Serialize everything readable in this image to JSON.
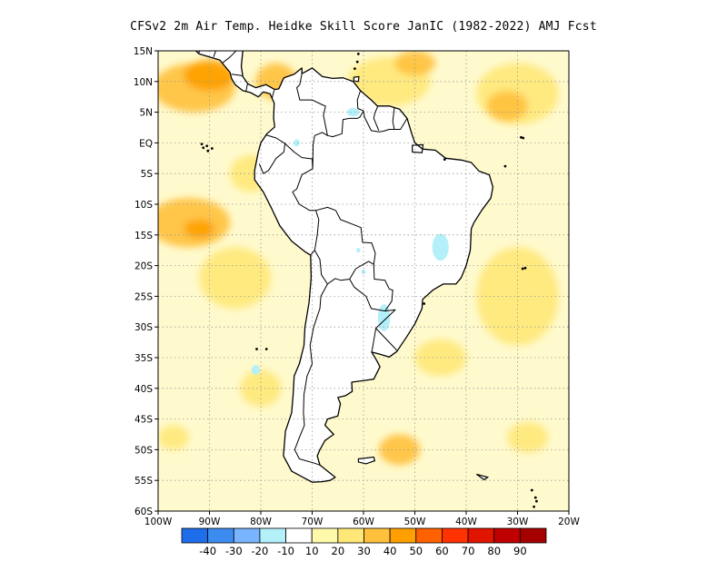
{
  "title": "CFSv2  2m Air Temp. Heidke Skill Score JanIC (1982-2022) AMJ Fcst",
  "map": {
    "lon_range": [
      -100,
      -20
    ],
    "lat_range": [
      -60,
      15
    ],
    "lat_ticks": [
      {
        "lat": 15,
        "label": "15N"
      },
      {
        "lat": 10,
        "label": "10N"
      },
      {
        "lat": 5,
        "label": "5N"
      },
      {
        "lat": 0,
        "label": "EQ"
      },
      {
        "lat": -5,
        "label": "5S"
      },
      {
        "lat": -10,
        "label": "10S"
      },
      {
        "lat": -15,
        "label": "15S"
      },
      {
        "lat": -20,
        "label": "20S"
      },
      {
        "lat": -25,
        "label": "25S"
      },
      {
        "lat": -30,
        "label": "30S"
      },
      {
        "lat": -35,
        "label": "35S"
      },
      {
        "lat": -40,
        "label": "40S"
      },
      {
        "lat": -45,
        "label": "45S"
      },
      {
        "lat": -50,
        "label": "50S"
      },
      {
        "lat": -55,
        "label": "55S"
      },
      {
        "lat": -60,
        "label": "60S"
      }
    ],
    "lon_ticks": [
      {
        "lon": -100,
        "label": "100W"
      },
      {
        "lon": -90,
        "label": "90W"
      },
      {
        "lon": -80,
        "label": "80W"
      },
      {
        "lon": -70,
        "label": "70W"
      },
      {
        "lon": -60,
        "label": "60W"
      },
      {
        "lon": -50,
        "label": "50W"
      },
      {
        "lon": -40,
        "label": "40W"
      },
      {
        "lon": -30,
        "label": "30W"
      },
      {
        "lon": -20,
        "label": "20W"
      }
    ],
    "gridlines": "dotted",
    "background_color": "#fffacd",
    "land_color": "#ffffff"
  },
  "colorbar": {
    "colors": [
      "#1e6eeb",
      "#3c8cf0",
      "#78b4ff",
      "#b4f0fa",
      "#ffffff",
      "#fffaaa",
      "#ffe878",
      "#ffc03c",
      "#ffa000",
      "#ff6000",
      "#ff3200",
      "#e11400",
      "#c00000",
      "#a50000"
    ],
    "labels": [
      "-40",
      "-30",
      "-20",
      "-10",
      "10",
      "20",
      "30",
      "40",
      "50",
      "60",
      "70",
      "80",
      "90"
    ]
  },
  "shading": [
    {
      "lon": -93,
      "lat": 9,
      "rx": 8,
      "ry": 4,
      "color": "#ffc03c"
    },
    {
      "lon": -90,
      "lat": 11,
      "rx": 5,
      "ry": 2.5,
      "color": "#ffa000"
    },
    {
      "lon": -77,
      "lat": 10,
      "rx": 4,
      "ry": 3,
      "color": "#ffc03c"
    },
    {
      "lon": -55,
      "lat": 10,
      "rx": 8,
      "ry": 4,
      "color": "#ffe878"
    },
    {
      "lon": -50,
      "lat": 13,
      "rx": 4,
      "ry": 2,
      "color": "#ffc03c"
    },
    {
      "lon": -30,
      "lat": 8,
      "rx": 8,
      "ry": 5,
      "color": "#ffe878"
    },
    {
      "lon": -32,
      "lat": 6,
      "rx": 4,
      "ry": 2.5,
      "color": "#ffc03c"
    },
    {
      "lon": -94,
      "lat": -13,
      "rx": 8,
      "ry": 4,
      "color": "#ffc03c"
    },
    {
      "lon": -92,
      "lat": -14,
      "rx": 3,
      "ry": 1.5,
      "color": "#ffa000"
    },
    {
      "lon": -85,
      "lat": -22,
      "rx": 7,
      "ry": 5,
      "color": "#ffe878"
    },
    {
      "lon": -82,
      "lat": -5,
      "rx": 4,
      "ry": 3,
      "color": "#ffe878"
    },
    {
      "lon": -70,
      "lat": -10,
      "rx": 3,
      "ry": 4,
      "color": "#ffe878"
    },
    {
      "lon": -40,
      "lat": -8,
      "rx": 4,
      "ry": 3,
      "color": "#ffe878"
    },
    {
      "lon": -58,
      "lat": -15,
      "rx": 4,
      "ry": 3,
      "color": "#ffe878"
    },
    {
      "lon": -30,
      "lat": -25,
      "rx": 8,
      "ry": 8,
      "color": "#ffe878"
    },
    {
      "lon": -45,
      "lat": -35,
      "rx": 5,
      "ry": 3,
      "color": "#ffe878"
    },
    {
      "lon": -53,
      "lat": -50,
      "rx": 4,
      "ry": 2.5,
      "color": "#ffc03c"
    },
    {
      "lon": -97,
      "lat": -48,
      "rx": 3,
      "ry": 2,
      "color": "#ffe878"
    },
    {
      "lon": -28,
      "lat": -48,
      "rx": 4,
      "ry": 2.5,
      "color": "#ffe878"
    },
    {
      "lon": -80,
      "lat": -40,
      "rx": 4,
      "ry": 3,
      "color": "#ffe878"
    }
  ],
  "negative_patches": [
    {
      "lon": -62,
      "lat": 5,
      "rx": 1.2,
      "ry": 0.7
    },
    {
      "lon": -73,
      "lat": 0,
      "rx": 0.6,
      "ry": 0.6
    },
    {
      "lon": -45,
      "lat": -17,
      "rx": 1.6,
      "ry": 2.2
    },
    {
      "lon": -56,
      "lat": -28.5,
      "rx": 1.2,
      "ry": 2.2
    },
    {
      "lon": -81,
      "lat": -37,
      "rx": 0.8,
      "ry": 0.8
    },
    {
      "lon": -60,
      "lat": -21,
      "rx": 0.4,
      "ry": 0.4
    },
    {
      "lon": -61,
      "lat": -17.5,
      "rx": 0.4,
      "ry": 0.4
    }
  ],
  "continent": [
    [
      -117,
      32
    ],
    [
      -110,
      27
    ],
    [
      -105,
      20
    ],
    [
      -98,
      16
    ],
    [
      -94,
      16
    ],
    [
      -92,
      14.5
    ],
    [
      -88,
      13.5
    ],
    [
      -87.5,
      13
    ],
    [
      -86,
      11.5
    ],
    [
      -85.7,
      10.5
    ],
    [
      -85,
      9.5
    ],
    [
      -83.5,
      8.5
    ],
    [
      -82,
      8.2
    ],
    [
      -80.5,
      7.5
    ],
    [
      -79.5,
      8.3
    ],
    [
      -78.2,
      8
    ],
    [
      -77.4,
      6.5
    ],
    [
      -77.5,
      4
    ],
    [
      -77.3,
      2.6
    ],
    [
      -78.8,
      1.5
    ],
    [
      -80,
      0
    ],
    [
      -80.5,
      -1.5
    ],
    [
      -81.2,
      -4.5
    ],
    [
      -81.2,
      -6
    ],
    [
      -79.5,
      -8
    ],
    [
      -78,
      -10.5
    ],
    [
      -76.3,
      -13.5
    ],
    [
      -74,
      -16
    ],
    [
      -71.3,
      -17.8
    ],
    [
      -70.3,
      -18.3
    ],
    [
      -70.2,
      -22
    ],
    [
      -70.6,
      -26
    ],
    [
      -71.4,
      -30
    ],
    [
      -71.6,
      -33
    ],
    [
      -72.5,
      -36
    ],
    [
      -73.5,
      -38
    ],
    [
      -73.7,
      -41
    ],
    [
      -74,
      -44
    ],
    [
      -75.2,
      -47
    ],
    [
      -75.6,
      -51
    ],
    [
      -74,
      -53.5
    ],
    [
      -70,
      -55.3
    ],
    [
      -68,
      -55.2
    ],
    [
      -66.5,
      -55
    ],
    [
      -65.5,
      -54.5
    ],
    [
      -68.5,
      -52.5
    ],
    [
      -69,
      -51
    ],
    [
      -68.5,
      -50
    ],
    [
      -67.5,
      -48.5
    ],
    [
      -65.8,
      -47.5
    ],
    [
      -67.5,
      -46
    ],
    [
      -67,
      -45
    ],
    [
      -65,
      -44.5
    ],
    [
      -64.5,
      -42.5
    ],
    [
      -65,
      -41.5
    ],
    [
      -63.5,
      -41.2
    ],
    [
      -62.2,
      -40.5
    ],
    [
      -62.3,
      -39
    ],
    [
      -58,
      -38.5
    ],
    [
      -56.8,
      -36.5
    ],
    [
      -57.4,
      -35.5
    ],
    [
      -58.4,
      -34.1
    ],
    [
      -57,
      -34.4
    ],
    [
      -55,
      -34.9
    ],
    [
      -53.5,
      -34
    ],
    [
      -51.5,
      -31.5
    ],
    [
      -50,
      -29.5
    ],
    [
      -48.6,
      -27
    ],
    [
      -48.5,
      -25.5
    ],
    [
      -46.5,
      -24
    ],
    [
      -44.5,
      -23
    ],
    [
      -42,
      -23
    ],
    [
      -41,
      -22
    ],
    [
      -40,
      -20
    ],
    [
      -39.2,
      -17.5
    ],
    [
      -39,
      -14
    ],
    [
      -38.5,
      -13
    ],
    [
      -37,
      -11
    ],
    [
      -35.2,
      -9
    ],
    [
      -34.8,
      -7.2
    ],
    [
      -35.5,
      -5.2
    ],
    [
      -37.5,
      -4.6
    ],
    [
      -39,
      -3.2
    ],
    [
      -41,
      -2.8
    ],
    [
      -44,
      -2.5
    ],
    [
      -46,
      -1.2
    ],
    [
      -48.5,
      -1
    ],
    [
      -50,
      0
    ],
    [
      -50.6,
      1.5
    ],
    [
      -51.5,
      4
    ],
    [
      -53,
      5.5
    ],
    [
      -55,
      6
    ],
    [
      -57.3,
      6
    ],
    [
      -58.5,
      7
    ],
    [
      -60.6,
      8.5
    ],
    [
      -62,
      10
    ],
    [
      -64,
      10.6
    ],
    [
      -66,
      10.5
    ],
    [
      -68,
      10.8
    ],
    [
      -70,
      12.2
    ],
    [
      -71.5,
      11.5
    ],
    [
      -72,
      11.3
    ],
    [
      -72,
      12.2
    ],
    [
      -73.5,
      11.2
    ],
    [
      -75.5,
      10.6
    ],
    [
      -76.5,
      8.8
    ],
    [
      -77.3,
      8.7
    ],
    [
      -79,
      9.5
    ],
    [
      -81,
      9
    ],
    [
      -82.5,
      9.6
    ],
    [
      -83.5,
      10.8
    ],
    [
      -83.8,
      12.5
    ],
    [
      -83.5,
      15
    ],
    [
      -85,
      16
    ],
    [
      -88,
      16
    ],
    [
      -88.3,
      18.5
    ],
    [
      -87,
      21.5
    ],
    [
      -90.5,
      21
    ],
    [
      -91.5,
      18.6
    ],
    [
      -94,
      18.2
    ],
    [
      -96.5,
      19.5
    ],
    [
      -97.5,
      22
    ],
    [
      -97.2,
      26
    ],
    [
      -99,
      32
    ],
    [
      -117,
      32
    ]
  ],
  "borders": [
    [
      [
        -92.2,
        14.5
      ],
      [
        -91.2,
        16
      ],
      [
        -90.4,
        16
      ],
      [
        -89.2,
        17.8
      ],
      [
        -88.3,
        18.5
      ]
    ],
    [
      [
        -89.2,
        14
      ],
      [
        -88.5,
        15.7
      ]
    ],
    [
      [
        -87.5,
        13
      ],
      [
        -86,
        14
      ],
      [
        -84.8,
        15
      ],
      [
        -83.2,
        15
      ]
    ],
    [
      [
        -85.7,
        11.2
      ],
      [
        -84,
        11
      ],
      [
        -83.6,
        10.9
      ]
    ],
    [
      [
        -82.9,
        8.3
      ],
      [
        -82.6,
        9.6
      ]
    ],
    [
      [
        -77.4,
        8.6
      ],
      [
        -77.8,
        7.3
      ]
    ],
    [
      [
        -72,
        11.3
      ],
      [
        -72.4,
        9.5
      ],
      [
        -73,
        9
      ],
      [
        -72.4,
        7
      ],
      [
        -70,
        7
      ],
      [
        -68,
        6.2
      ],
      [
        -67.4,
        6
      ],
      [
        -67.8,
        4.5
      ],
      [
        -67.2,
        2
      ],
      [
        -67,
        1.2
      ],
      [
        -68,
        1.7
      ],
      [
        -69.5,
        1.2
      ],
      [
        -69.8,
        -0.2
      ],
      [
        -69.9,
        -4.2
      ]
    ],
    [
      [
        -79,
        1.3
      ],
      [
        -77,
        0.8
      ],
      [
        -75.3,
        -0.1
      ],
      [
        -75.5,
        -1.5
      ],
      [
        -77,
        -2.5
      ],
      [
        -78.5,
        -4.5
      ],
      [
        -79.5,
        -5
      ],
      [
        -80.3,
        -3.4
      ]
    ],
    [
      [
        -75.3,
        -0.1
      ],
      [
        -73.5,
        -1.5
      ],
      [
        -72,
        -2.4
      ],
      [
        -70,
        -2.6
      ],
      [
        -69.9,
        -4.2
      ],
      [
        -72,
        -5.2
      ],
      [
        -73,
        -7.5
      ],
      [
        -73.8,
        -8
      ],
      [
        -72.5,
        -10
      ],
      [
        -70.5,
        -11
      ],
      [
        -69.3,
        -11
      ],
      [
        -68.7,
        -12.5
      ],
      [
        -69,
        -15
      ],
      [
        -69.5,
        -17.5
      ],
      [
        -70.3,
        -18.3
      ]
    ],
    [
      [
        -69.5,
        -17.5
      ],
      [
        -68.5,
        -19
      ],
      [
        -68.2,
        -21.5
      ],
      [
        -67,
        -23
      ],
      [
        -68.3,
        -25
      ],
      [
        -68.5,
        -27
      ],
      [
        -69.7,
        -30
      ],
      [
        -70.4,
        -33
      ],
      [
        -70,
        -36
      ],
      [
        -71,
        -38
      ],
      [
        -71.6,
        -41
      ],
      [
        -71.7,
        -44
      ],
      [
        -71.5,
        -46
      ],
      [
        -72.5,
        -48
      ],
      [
        -73.4,
        -50
      ],
      [
        -72.5,
        -51.5
      ],
      [
        -69.5,
        -52.2
      ],
      [
        -68.5,
        -52.5
      ]
    ],
    [
      [
        -67,
        -23
      ],
      [
        -65.5,
        -22.1
      ],
      [
        -64.4,
        -22.4
      ],
      [
        -62.7,
        -22.2
      ],
      [
        -61.5,
        -20.5
      ],
      [
        -59,
        -19.3
      ],
      [
        -58,
        -19.8
      ],
      [
        -57.7,
        -18
      ],
      [
        -58.4,
        -16.3
      ],
      [
        -60.2,
        -16.2
      ],
      [
        -60.5,
        -13.8
      ],
      [
        -62,
        -13.3
      ],
      [
        -64.5,
        -12.5
      ],
      [
        -65.4,
        -11
      ],
      [
        -67,
        -10.5
      ],
      [
        -69.3,
        -11
      ]
    ],
    [
      [
        -62.7,
        -22.2
      ],
      [
        -61.8,
        -23.5
      ],
      [
        -59.5,
        -25
      ],
      [
        -58.5,
        -27
      ],
      [
        -55.8,
        -27.4
      ],
      [
        -54.5,
        -25.8
      ],
      [
        -54.3,
        -24
      ],
      [
        -55,
        -23.8
      ],
      [
        -55.8,
        -22.4
      ],
      [
        -57.9,
        -22.2
      ],
      [
        -58,
        -19.8
      ]
    ],
    [
      [
        -55.8,
        -27.4
      ],
      [
        -53.8,
        -27.2
      ],
      [
        -57.6,
        -30.2
      ],
      [
        -53.5,
        -33.8
      ]
    ],
    [
      [
        -57.6,
        -30.2
      ],
      [
        -58.2,
        -33.2
      ],
      [
        -58.4,
        -34.1
      ]
    ],
    [
      [
        -60.6,
        8.5
      ],
      [
        -61.2,
        7
      ],
      [
        -61.1,
        5.6
      ],
      [
        -60,
        5.2
      ],
      [
        -60.7,
        4.2
      ],
      [
        -61.2,
        4
      ],
      [
        -62.8,
        4
      ],
      [
        -64,
        3.8
      ],
      [
        -64.2,
        1.5
      ],
      [
        -66,
        1
      ],
      [
        -67,
        1.2
      ]
    ],
    [
      [
        -60,
        5.2
      ],
      [
        -59.8,
        4.2
      ],
      [
        -58.5,
        2
      ],
      [
        -57,
        1.8
      ],
      [
        -56.2,
        1.9
      ],
      [
        -55,
        2.2
      ],
      [
        -54,
        2.2
      ],
      [
        -52.8,
        2.2
      ],
      [
        -51.5,
        4
      ]
    ],
    [
      [
        -57.2,
        6
      ],
      [
        -57.8,
        4.8
      ],
      [
        -58,
        4
      ],
      [
        -57,
        2
      ]
    ],
    [
      [
        -54,
        5.7
      ],
      [
        -54.3,
        3.5
      ],
      [
        -54,
        2.2
      ]
    ]
  ],
  "islands": [
    [
      [
        -84,
        23
      ],
      [
        -82,
        23.2
      ],
      [
        -80,
        23
      ],
      [
        -77.5,
        21.7
      ],
      [
        -74.2,
        20.2
      ],
      [
        -75.5,
        19.8
      ],
      [
        -78,
        20.8
      ],
      [
        -81,
        22
      ],
      [
        -84,
        22
      ],
      [
        -85,
        22
      ],
      [
        -84,
        23
      ]
    ],
    [
      [
        -72.5,
        19.8
      ],
      [
        -68.5,
        19
      ],
      [
        -68.5,
        18.2
      ],
      [
        -71,
        18
      ],
      [
        -74.4,
        18.4
      ],
      [
        -72.5,
        19.8
      ]
    ],
    [
      [
        -78.3,
        18.4
      ],
      [
        -76.3,
        18.2
      ],
      [
        -76.6,
        17.9
      ],
      [
        -78.2,
        18
      ],
      [
        -78.3,
        18.4
      ]
    ],
    [
      [
        -67.2,
        18.5
      ],
      [
        -65.6,
        18.4
      ],
      [
        -65.7,
        18
      ],
      [
        -67.2,
        18
      ],
      [
        -67.2,
        18.5
      ]
    ],
    [
      [
        -61.9,
        10.7
      ],
      [
        -60.9,
        10.8
      ],
      [
        -61,
        10
      ],
      [
        -61.9,
        10.1
      ],
      [
        -61.9,
        10.7
      ]
    ],
    [
      [
        -50.5,
        -0.4
      ],
      [
        -48.4,
        -0.3
      ],
      [
        -48.6,
        -1.6
      ],
      [
        -50.5,
        -1.5
      ],
      [
        -50.5,
        -0.4
      ]
    ],
    [
      [
        -61,
        -51.5
      ],
      [
        -58,
        -51.2
      ],
      [
        -57.8,
        -51.8
      ],
      [
        -59.5,
        -52.3
      ],
      [
        -61,
        -52
      ],
      [
        -61,
        -51.5
      ]
    ],
    [
      [
        -38,
        -54
      ],
      [
        -35.8,
        -54.5
      ],
      [
        -36.5,
        -54.9
      ],
      [
        -38,
        -54
      ],
      [
        -38,
        -54
      ]
    ]
  ],
  "dots": [
    [
      -90.5,
      -0.5
    ],
    [
      -91.2,
      -0.8
    ],
    [
      -89.5,
      -0.9
    ],
    [
      -90.3,
      -1.3
    ],
    [
      -91.5,
      -0.2
    ],
    [
      -80.8,
      -33.6
    ],
    [
      -78.9,
      -33.6
    ],
    [
      -61.5,
      16.2
    ],
    [
      -61,
      14.5
    ],
    [
      -61.2,
      13.2
    ],
    [
      -61.7,
      12.1
    ],
    [
      -64.9,
      18.3
    ],
    [
      -32.4,
      -3.8
    ],
    [
      -29.3,
      0.9
    ],
    [
      -28.9,
      0.8
    ],
    [
      -29,
      -20.5
    ],
    [
      -28.5,
      -20.4
    ],
    [
      -26.3,
      -58.4
    ],
    [
      -26.5,
      -57.8
    ],
    [
      -26.8,
      -59.3
    ],
    [
      -27.2,
      -56.6
    ],
    [
      -48.2,
      -26.2
    ],
    [
      -44.2,
      -2.7
    ]
  ]
}
